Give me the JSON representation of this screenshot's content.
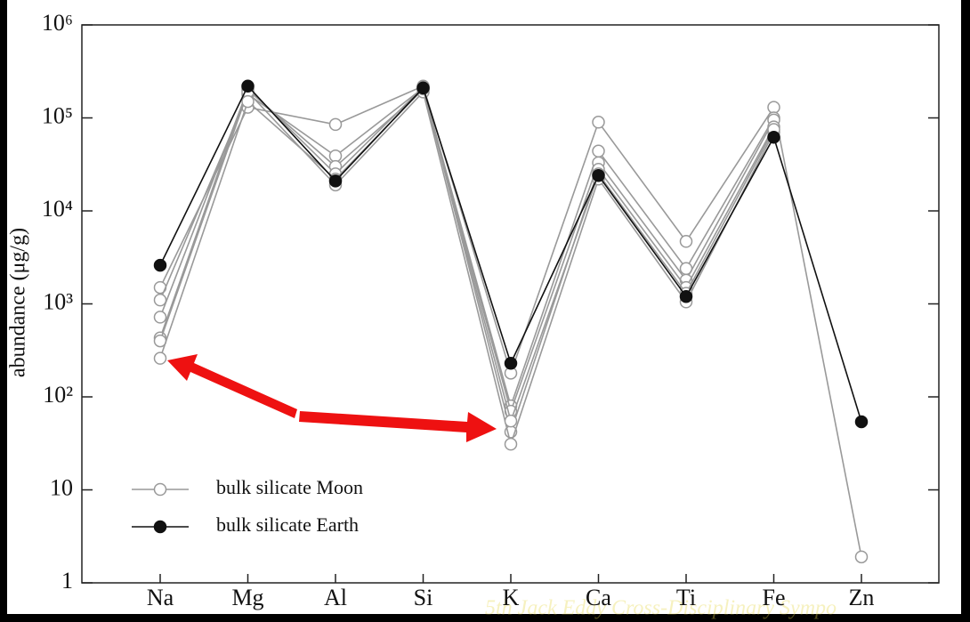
{
  "chart_data": {
    "type": "line",
    "log_scale": true,
    "grid": false,
    "legend": "lower left",
    "ylabel": "abundance (μg/g)",
    "footer": "5th Jack Eddy Cross-Disciplinary Sympo",
    "categories": [
      "Na",
      "Mg",
      "Al",
      "Si",
      "K",
      "Ca",
      "Ti",
      "Fe",
      "Zn"
    ],
    "ylim": [
      1,
      1000000
    ],
    "yticks": [
      1,
      10,
      {
        "value": 100,
        "label": "10²"
      },
      {
        "value": 1000,
        "label": "10³"
      },
      {
        "value": 10000,
        "label": "10⁴"
      },
      {
        "value": 100000,
        "label": "10⁵"
      },
      {
        "value": 1000000,
        "label": "10⁶"
      }
    ],
    "series": [
      {
        "name": "bulk silicate Moon",
        "color": "#999999",
        "marker": "open",
        "values": [
          1500,
          130000,
          85000,
          220000,
          180,
          90000,
          4700,
          130000,
          1.9
        ]
      },
      {
        "color": "#999999",
        "marker": "open",
        "values": [
          1100,
          180000,
          39000,
          210000,
          80,
          44000,
          2400,
          100000,
          null
        ]
      },
      {
        "color": "#999999",
        "marker": "open",
        "values": [
          720,
          200000,
          30000,
          200000,
          70,
          33000,
          1800,
          95000,
          null
        ]
      },
      {
        "color": "#999999",
        "marker": "open",
        "values": [
          430,
          210000,
          25000,
          215000,
          42,
          28000,
          1500,
          80000,
          null
        ]
      },
      {
        "color": "#999999",
        "marker": "open",
        "values": [
          400,
          190000,
          19000,
          190000,
          31,
          22000,
          1050,
          70000,
          null
        ]
      },
      {
        "color": "#999999",
        "marker": "open",
        "values": [
          260,
          150000,
          22000,
          205000,
          55,
          25000,
          1300,
          75000,
          null
        ]
      },
      {
        "name": "bulk silicate Earth",
        "color": "#111111",
        "marker": "filled",
        "values": [
          2600,
          220000,
          21000,
          210000,
          230,
          24000,
          1200,
          62000,
          54
        ]
      }
    ]
  }
}
